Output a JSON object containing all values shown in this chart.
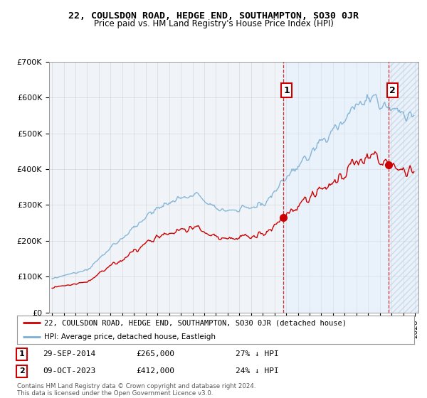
{
  "title": "22, COULSDON ROAD, HEDGE END, SOUTHAMPTON, SO30 0JR",
  "subtitle": "Price paid vs. HM Land Registry's House Price Index (HPI)",
  "ylabel_ticks": [
    "£0",
    "£100K",
    "£200K",
    "£300K",
    "£400K",
    "£500K",
    "£600K",
    "£700K"
  ],
  "ytick_vals": [
    0,
    100000,
    200000,
    300000,
    400000,
    500000,
    600000,
    700000
  ],
  "ylim": [
    0,
    700000
  ],
  "xlim_start": 1994.75,
  "xlim_end": 2026.3,
  "sale1_date": 2014.747,
  "sale1_price": 265000,
  "sale2_date": 2023.771,
  "sale2_price": 412000,
  "legend_line1": "22, COULSDON ROAD, HEDGE END, SOUTHAMPTON, SO30 0JR (detached house)",
  "legend_line2": "HPI: Average price, detached house, Eastleigh",
  "row1_num": "1",
  "row1_date": "29-SEP-2014",
  "row1_price": "£265,000",
  "row1_note": "27% ↓ HPI",
  "row2_num": "2",
  "row2_date": "09-OCT-2023",
  "row2_price": "£412,000",
  "row2_note": "24% ↓ HPI",
  "footnote": "Contains HM Land Registry data © Crown copyright and database right 2024.\nThis data is licensed under the Open Government Licence v3.0.",
  "red_color": "#cc0000",
  "blue_color": "#7ab0d4",
  "shade_color": "#ddeeff",
  "bg_color": "#f0f4f8",
  "grid_color": "#cccccc"
}
